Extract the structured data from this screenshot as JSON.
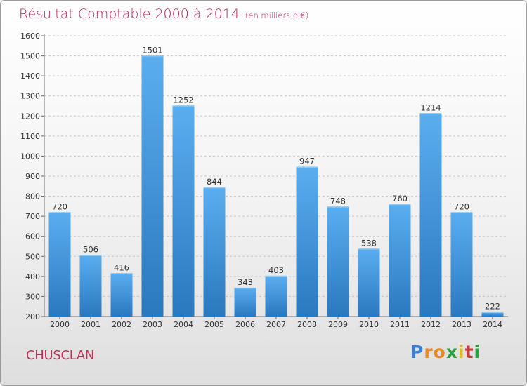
{
  "header": {
    "title": "Résultat Comptable 2000 à 2014",
    "unit": "(en milliers d'€)"
  },
  "footer": {
    "town": "CHUSCLAN",
    "logo": [
      "P",
      "r",
      "o",
      "x",
      "i",
      "t",
      "i"
    ]
  },
  "colors": {
    "title": "#b5235b",
    "bar_top": "#5aaef0",
    "bar_bottom": "#2a78be",
    "logo": [
      "#3b7fd1",
      "#e88a1d",
      "#e88a1d",
      "#2c9e3d",
      "#e0b82a",
      "#c43c3c",
      "#2c9e3d"
    ]
  },
  "chart_data": {
    "type": "bar",
    "categories": [
      "2000",
      "2001",
      "2002",
      "2003",
      "2004",
      "2005",
      "2006",
      "2007",
      "2008",
      "2009",
      "2010",
      "2011",
      "2012",
      "2013",
      "2014"
    ],
    "values": [
      720,
      506,
      416,
      1501,
      1252,
      844,
      343,
      403,
      947,
      748,
      538,
      760,
      1214,
      720,
      222
    ],
    "title": "Résultat Comptable 2000 à 2014",
    "ylim": [
      200,
      1600
    ],
    "yticks": [
      200,
      300,
      400,
      500,
      600,
      700,
      800,
      900,
      1000,
      1100,
      1200,
      1300,
      1400,
      1500,
      1600
    ],
    "grid": true
  }
}
